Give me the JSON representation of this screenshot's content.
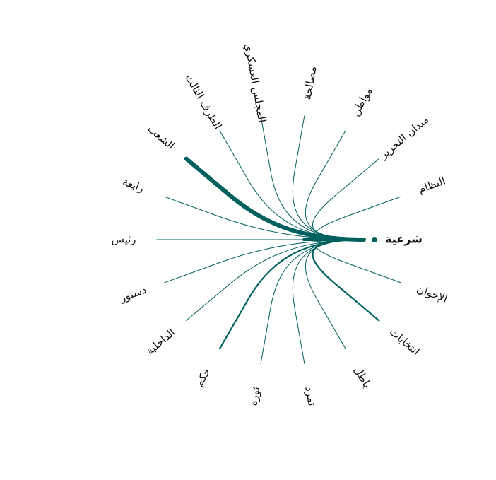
{
  "diagram": {
    "type": "radial-word-links",
    "focus": {
      "label": "شرعية"
    },
    "colors": {
      "link": "#00605e",
      "text": "#111111",
      "background": "#ffffff"
    },
    "terms": [
      {
        "id": "nizam",
        "label": "النظام",
        "weight": 1
      },
      {
        "id": "midan",
        "label": "ميدان التحرير",
        "weight": 1
      },
      {
        "id": "muwatin",
        "label": "مواطن",
        "weight": 1
      },
      {
        "id": "musalaha",
        "label": "مصالحة",
        "weight": 1
      },
      {
        "id": "majlis",
        "label": "المجلس العسكري",
        "weight": 1
      },
      {
        "id": "taraf",
        "label": "الطرف الثالث",
        "weight": 1
      },
      {
        "id": "shaab",
        "label": "الشعب",
        "weight": 6
      },
      {
        "id": "rabaa",
        "label": "رابعة",
        "weight": 1
      },
      {
        "id": "rais",
        "label": "رئيس",
        "weight": 1
      },
      {
        "id": "dustur",
        "label": "دستور",
        "weight": 1
      },
      {
        "id": "dakhiliya",
        "label": "الداخلية",
        "weight": 1
      },
      {
        "id": "hukm",
        "label": "حكم",
        "weight": 2.2
      },
      {
        "id": "thawra",
        "label": "ثورة",
        "weight": 1
      },
      {
        "id": "tamarrud",
        "label": "تمرد",
        "weight": 1
      },
      {
        "id": "batil",
        "label": "باطل",
        "weight": 1
      },
      {
        "id": "intikhabat",
        "label": "انتخابات",
        "weight": 2.2
      },
      {
        "id": "ikhwan",
        "label": "الإخوان",
        "weight": 1
      }
    ]
  }
}
